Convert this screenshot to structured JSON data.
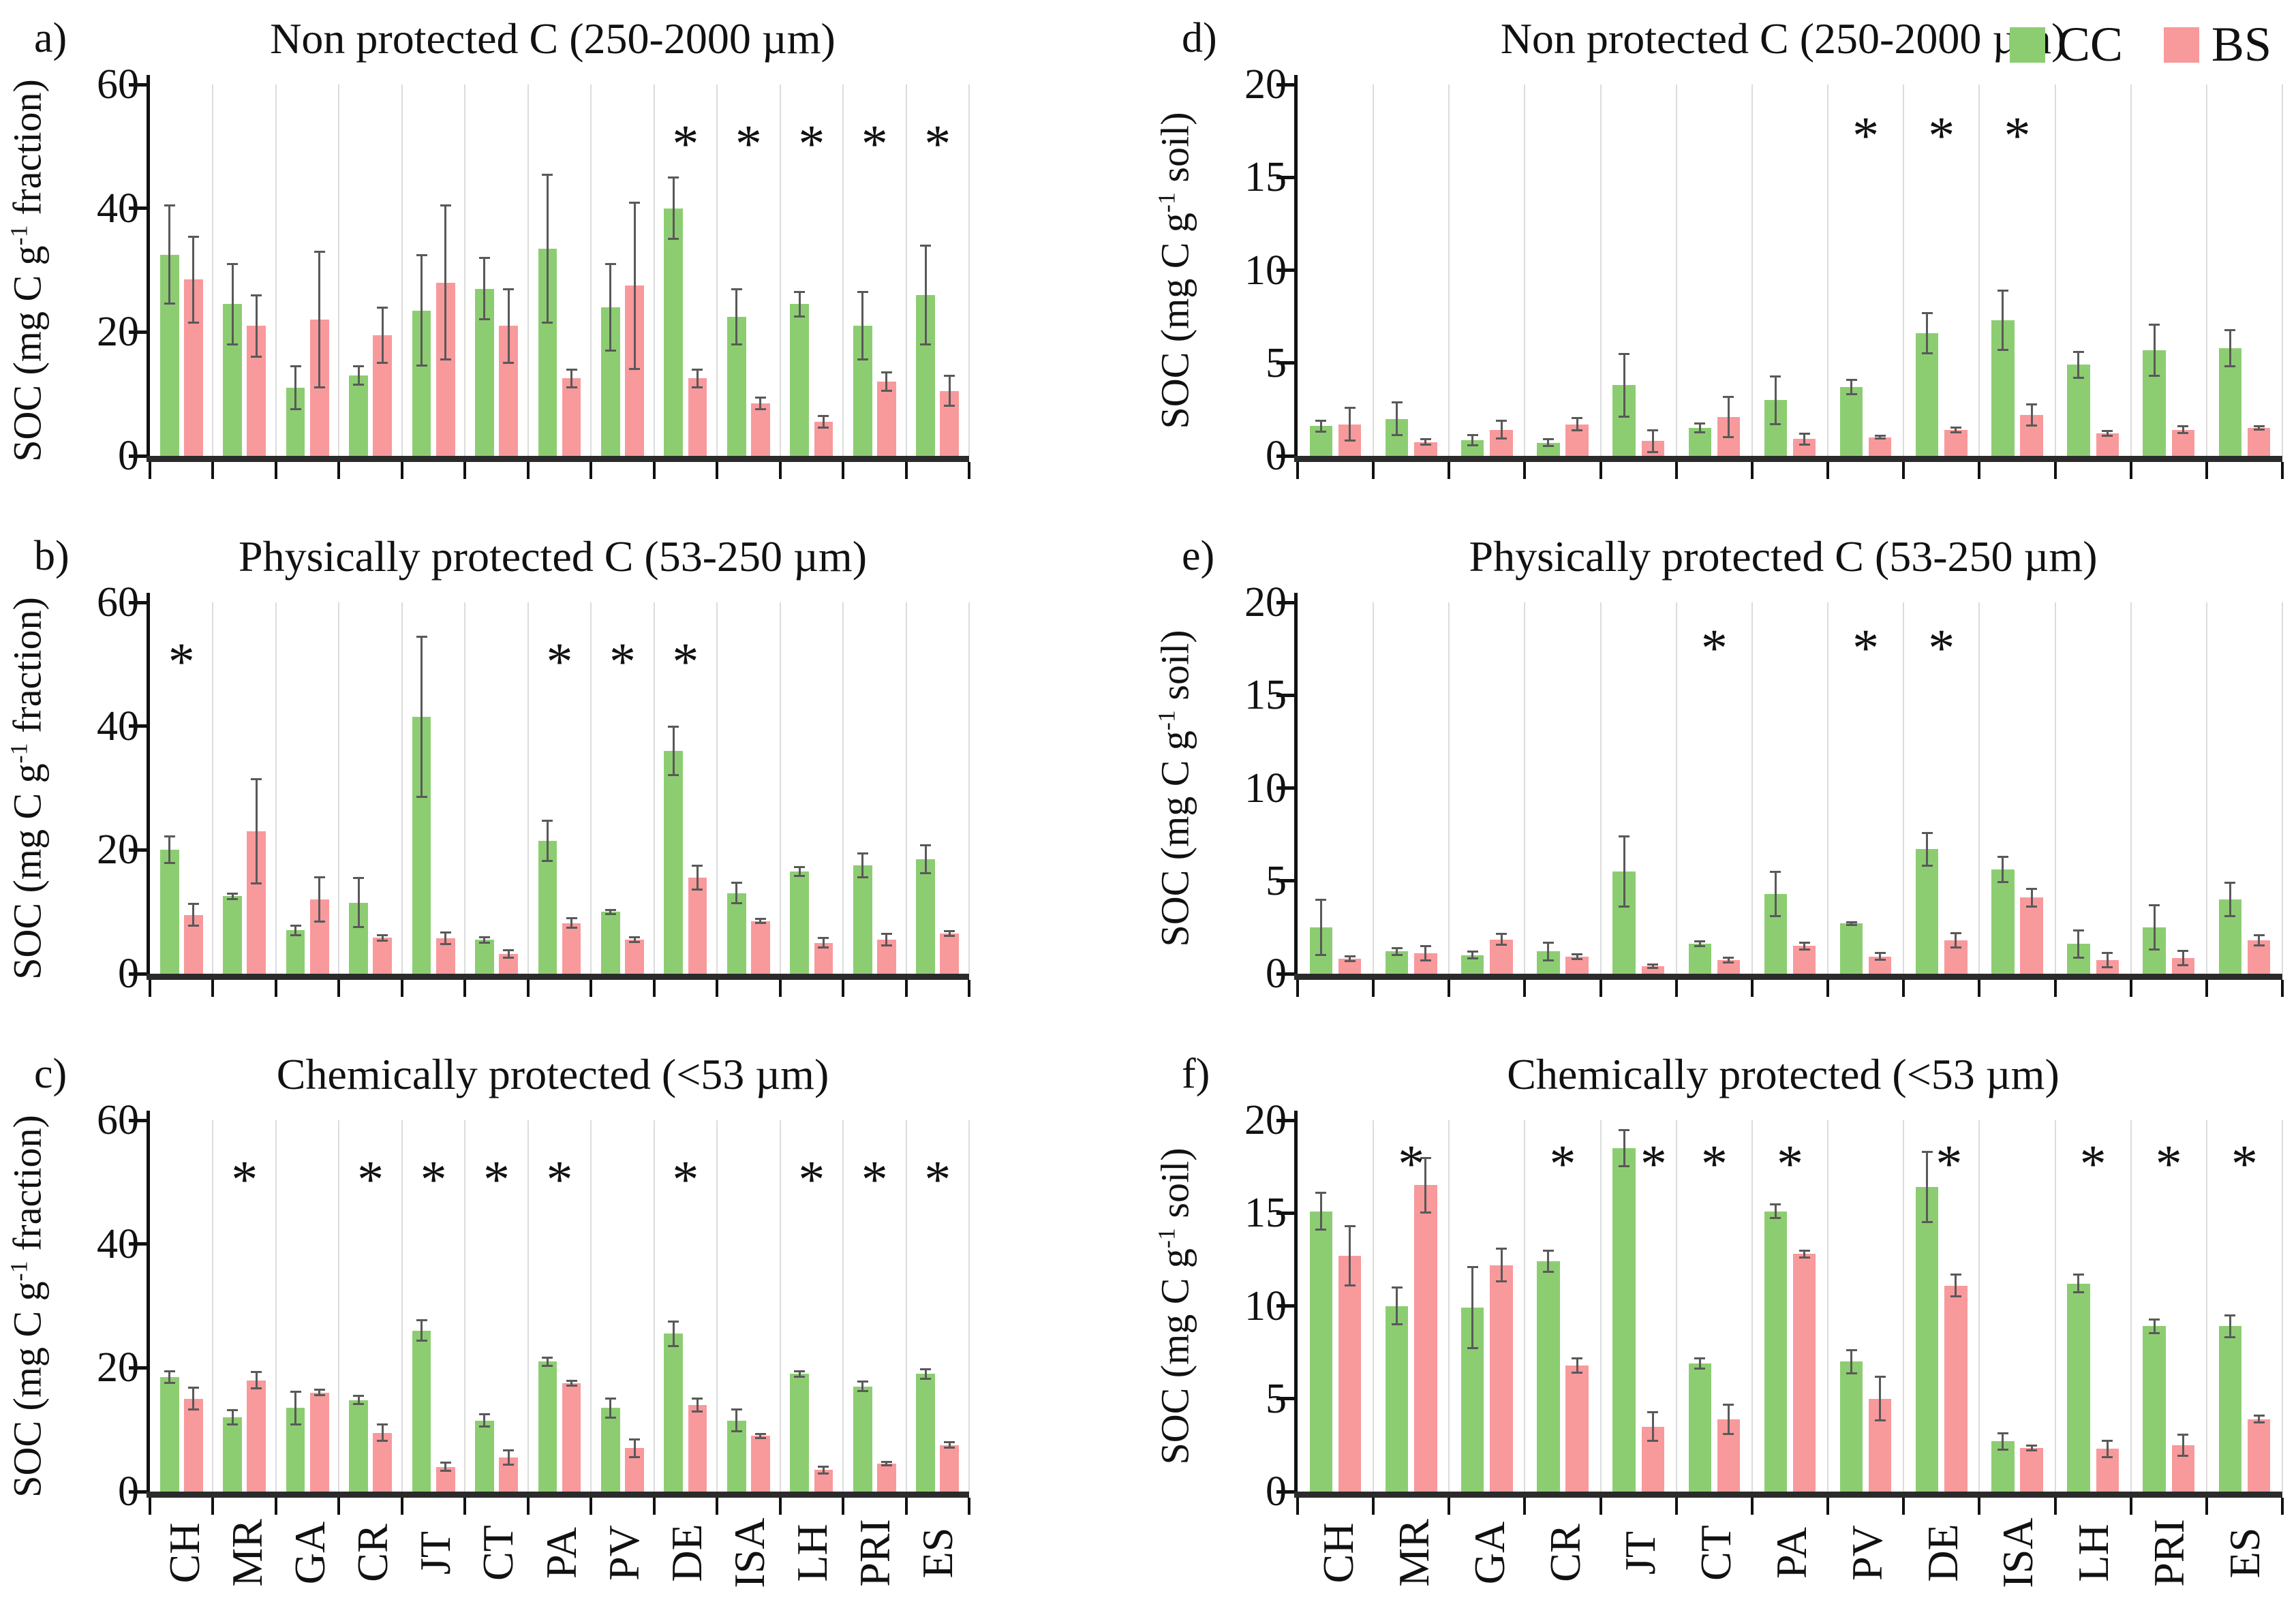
{
  "figure": {
    "colors": {
      "cc": "#8DCD72",
      "bs": "#F8999C",
      "error_bar": "#595959",
      "gridline": "#DCDCDC",
      "axis": "#111111",
      "baseline": "#2B2B2B"
    },
    "legend": {
      "items": [
        {
          "label": "CC",
          "color": "#8DCD72"
        },
        {
          "label": "BS",
          "color": "#F8999C"
        }
      ]
    }
  },
  "chart_data": [
    {
      "id": "a",
      "letter": "a)",
      "title": "Non protected C (250-2000 µm)",
      "type": "bar",
      "ylabel": "SOC (mg C g-1 fraction)",
      "ylabel_prefix": "SOC (mg C g",
      "ylabel_sup": "-1",
      "ylabel_suffix": " fraction)",
      "ylim": [
        0,
        60
      ],
      "yticks": [
        0,
        20,
        40,
        60
      ],
      "grid": true,
      "legend_position": "none",
      "categories": [
        "CH",
        "MR",
        "GA",
        "CR",
        "JT",
        "CT",
        "PA",
        "PV",
        "DE",
        "ISA",
        "LH",
        "PRI",
        "ES"
      ],
      "series": [
        {
          "name": "CC",
          "values": [
            32.5,
            24.5,
            11,
            13,
            23.5,
            27,
            33.5,
            24,
            40,
            22.5,
            24.5,
            21,
            26
          ],
          "errors": [
            8,
            6.5,
            3.5,
            1.5,
            9,
            5,
            12,
            7,
            5,
            4.5,
            2,
            5.5,
            8
          ]
        },
        {
          "name": "BS",
          "values": [
            28.5,
            21,
            22,
            19.5,
            28,
            21,
            12.5,
            27.5,
            12.5,
            8.5,
            5.5,
            12,
            10.5
          ],
          "errors": [
            7,
            5,
            11,
            4.5,
            12.5,
            6,
            1.5,
            13.5,
            1.5,
            1,
            1,
            1.5,
            2.5
          ]
        }
      ],
      "asterisks": [
        {
          "category": "DE",
          "dx": 0
        },
        {
          "category": "ISA",
          "dx": 0
        },
        {
          "category": "LH",
          "dx": 0
        },
        {
          "category": "PRI",
          "dx": 0
        },
        {
          "category": "ES",
          "dx": 0
        }
      ],
      "asterisk_y": 50,
      "show_x_labels": false
    },
    {
      "id": "d",
      "letter": "d)",
      "title": "Non protected C (250-2000 µm)",
      "type": "bar",
      "ylabel": "SOC (mg C g-1 soil)",
      "ylabel_prefix": "SOC (mg C g",
      "ylabel_sup": "-1",
      "ylabel_suffix": " soil)",
      "ylim": [
        0,
        20
      ],
      "yticks": [
        0,
        5,
        10,
        15,
        20
      ],
      "grid": true,
      "legend_position": "top-right",
      "categories": [
        "CH",
        "MR",
        "GA",
        "CR",
        "JT",
        "CT",
        "PA",
        "PV",
        "DE",
        "ISA",
        "LH",
        "PRI",
        "ES"
      ],
      "series": [
        {
          "name": "CC",
          "values": [
            1.6,
            2.0,
            0.85,
            0.7,
            3.8,
            1.5,
            3.0,
            3.7,
            6.6,
            7.3,
            4.9,
            5.7,
            5.8
          ],
          "errors": [
            0.3,
            0.9,
            0.3,
            0.2,
            1.7,
            0.25,
            1.3,
            0.4,
            1.1,
            1.6,
            0.7,
            1.4,
            1.0
          ]
        },
        {
          "name": "BS",
          "values": [
            1.7,
            0.75,
            1.4,
            1.7,
            0.8,
            2.1,
            0.9,
            1.0,
            1.4,
            2.2,
            1.2,
            1.4,
            1.5
          ],
          "errors": [
            0.9,
            0.15,
            0.5,
            0.35,
            0.6,
            1.1,
            0.3,
            0.1,
            0.15,
            0.6,
            0.15,
            0.2,
            0.1
          ]
        }
      ],
      "asterisks": [
        {
          "category": "PV",
          "dx": 0
        },
        {
          "category": "DE",
          "dx": 0
        },
        {
          "category": "ISA",
          "dx": 0
        }
      ],
      "asterisk_y": 17.1,
      "show_x_labels": false
    },
    {
      "id": "b",
      "letter": "b)",
      "title": "Physically protected C (53-250 µm)",
      "type": "bar",
      "ylabel": "SOC (mg C g-1 fraction)",
      "ylabel_prefix": "SOC (mg C g",
      "ylabel_sup": "-1",
      "ylabel_suffix": " fraction)",
      "ylim": [
        0,
        60
      ],
      "yticks": [
        0,
        20,
        40,
        60
      ],
      "grid": true,
      "legend_position": "none",
      "categories": [
        "CH",
        "MR",
        "GA",
        "CR",
        "JT",
        "CT",
        "PA",
        "PV",
        "DE",
        "ISA",
        "LH",
        "PRI",
        "ES"
      ],
      "series": [
        {
          "name": "CC",
          "values": [
            20,
            12.5,
            7,
            11.5,
            41.5,
            5.5,
            21.5,
            10,
            36,
            13,
            16.5,
            17.5,
            18.5
          ],
          "errors": [
            2.2,
            0.5,
            0.8,
            4,
            13,
            0.5,
            3.3,
            0.4,
            4,
            1.7,
            0.8,
            2,
            2.3
          ]
        },
        {
          "name": "BS",
          "values": [
            9.5,
            23,
            12,
            5.8,
            5.7,
            3.2,
            8.2,
            5.5,
            15.5,
            8.5,
            5,
            5.5,
            6.5
          ],
          "errors": [
            1.8,
            8.5,
            3.6,
            0.5,
            1,
            0.7,
            0.8,
            0.4,
            2,
            0.4,
            0.8,
            1,
            0.4
          ]
        }
      ],
      "asterisks": [
        {
          "category": "CH",
          "dx": 0
        },
        {
          "category": "PA",
          "dx": 0
        },
        {
          "category": "PV",
          "dx": 0
        },
        {
          "category": "DE",
          "dx": 0
        }
      ],
      "asterisk_y": 50,
      "show_x_labels": false
    },
    {
      "id": "e",
      "letter": "e)",
      "title": "Physically protected C (53-250 µm)",
      "type": "bar",
      "ylabel": "SOC (mg C g-1 soil)",
      "ylabel_prefix": "SOC (mg C g",
      "ylabel_sup": "-1",
      "ylabel_suffix": " soil)",
      "ylim": [
        0,
        20
      ],
      "yticks": [
        0,
        5,
        10,
        15,
        20
      ],
      "grid": true,
      "legend_position": "none",
      "categories": [
        "CH",
        "MR",
        "GA",
        "CR",
        "JT",
        "CT",
        "PA",
        "PV",
        "DE",
        "ISA",
        "LH",
        "PRI",
        "ES"
      ],
      "series": [
        {
          "name": "CC",
          "values": [
            2.5,
            1.2,
            1.0,
            1.2,
            5.5,
            1.6,
            4.3,
            2.7,
            6.7,
            5.6,
            1.6,
            2.5,
            4.0
          ],
          "errors": [
            1.5,
            0.2,
            0.2,
            0.5,
            1.9,
            0.15,
            1.2,
            0.1,
            0.9,
            0.7,
            0.75,
            1.2,
            0.9
          ]
        },
        {
          "name": "BS",
          "values": [
            0.8,
            1.1,
            1.85,
            0.93,
            0.4,
            0.73,
            1.5,
            0.93,
            1.8,
            4.1,
            0.73,
            0.83,
            1.8
          ],
          "errors": [
            0.15,
            0.4,
            0.3,
            0.15,
            0.1,
            0.15,
            0.2,
            0.2,
            0.4,
            0.5,
            0.4,
            0.4,
            0.3
          ]
        }
      ],
      "asterisks": [
        {
          "category": "CT",
          "dx": 0
        },
        {
          "category": "PV",
          "dx": 0
        },
        {
          "category": "DE",
          "dx": 0
        }
      ],
      "asterisk_y": 17.4,
      "show_x_labels": false
    },
    {
      "id": "c",
      "letter": "c)",
      "title": "Chemically protected (<53 µm)",
      "type": "bar",
      "ylabel": "SOC (mg C g-1 fraction)",
      "ylabel_prefix": "SOC (mg C g",
      "ylabel_sup": "-1",
      "ylabel_suffix": " fraction)",
      "ylim": [
        0,
        60
      ],
      "yticks": [
        0,
        20,
        40,
        60
      ],
      "grid": true,
      "legend_position": "none",
      "categories": [
        "CH",
        "MR",
        "GA",
        "CR",
        "JT",
        "CT",
        "PA",
        "PV",
        "DE",
        "ISA",
        "LH",
        "PRI",
        "ES"
      ],
      "series": [
        {
          "name": "CC",
          "values": [
            18.5,
            12,
            13.5,
            14.8,
            26,
            11.5,
            21,
            13.5,
            25.5,
            11.5,
            19,
            17,
            19
          ],
          "errors": [
            1,
            1.2,
            2.7,
            0.7,
            1.7,
            1,
            0.7,
            1.6,
            2,
            1.8,
            0.5,
            0.8,
            0.8
          ]
        },
        {
          "name": "BS",
          "values": [
            15,
            18,
            16,
            9.5,
            4,
            5.5,
            17.5,
            7,
            14,
            9,
            3.5,
            4.5,
            7.5
          ],
          "errors": [
            1.8,
            1.4,
            0.5,
            1.4,
            0.7,
            1.2,
            0.4,
            1.5,
            1.1,
            0.4,
            0.6,
            0.3,
            0.5
          ]
        }
      ],
      "asterisks": [
        {
          "category": "MR",
          "dx": 0
        },
        {
          "category": "CR",
          "dx": 0
        },
        {
          "category": "JT",
          "dx": 0
        },
        {
          "category": "CT",
          "dx": 0
        },
        {
          "category": "PA",
          "dx": 0
        },
        {
          "category": "DE",
          "dx": 0
        },
        {
          "category": "LH",
          "dx": 0
        },
        {
          "category": "PRI",
          "dx": 0
        },
        {
          "category": "ES",
          "dx": 0
        }
      ],
      "asterisk_y": 50,
      "show_x_labels": true
    },
    {
      "id": "f",
      "letter": "f)",
      "title": "Chemically protected (<53 µm)",
      "type": "bar",
      "ylabel": "SOC (mg C g-1 soil)",
      "ylabel_prefix": "SOC (mg C g",
      "ylabel_sup": "-1",
      "ylabel_suffix": " soil)",
      "ylim": [
        0,
        20
      ],
      "yticks": [
        0,
        5,
        10,
        15,
        20
      ],
      "grid": true,
      "legend_position": "none",
      "categories": [
        "CH",
        "MR",
        "GA",
        "CR",
        "JT",
        "CT",
        "PA",
        "PV",
        "DE",
        "ISA",
        "LH",
        "PRI",
        "ES"
      ],
      "series": [
        {
          "name": "CC",
          "values": [
            15.1,
            10.0,
            9.9,
            12.4,
            18.5,
            6.9,
            15.1,
            7.0,
            16.4,
            2.7,
            11.2,
            8.9,
            8.9
          ],
          "errors": [
            1.0,
            1.0,
            2.2,
            0.6,
            1.0,
            0.3,
            0.4,
            0.65,
            1.9,
            0.45,
            0.5,
            0.4,
            0.6
          ]
        },
        {
          "name": "BS",
          "values": [
            12.7,
            16.5,
            12.2,
            6.8,
            3.5,
            3.9,
            12.8,
            5.0,
            11.1,
            2.35,
            2.3,
            2.5,
            3.9
          ],
          "errors": [
            1.6,
            1.5,
            0.9,
            0.4,
            0.8,
            0.8,
            0.2,
            1.2,
            0.6,
            0.15,
            0.45,
            0.6,
            0.2
          ]
        }
      ],
      "asterisks": [
        {
          "category": "MR",
          "dx": 0
        },
        {
          "category": "CR",
          "dx": 0
        },
        {
          "category": "JT",
          "dx": 0.2
        },
        {
          "category": "CT",
          "dx": 0
        },
        {
          "category": "PA",
          "dx": 0
        },
        {
          "category": "DE",
          "dx": 0.1
        },
        {
          "category": "LH",
          "dx": 0
        },
        {
          "category": "PRI",
          "dx": 0
        },
        {
          "category": "ES",
          "dx": 0
        }
      ],
      "asterisk_y": 17.5,
      "show_x_labels": true
    }
  ]
}
